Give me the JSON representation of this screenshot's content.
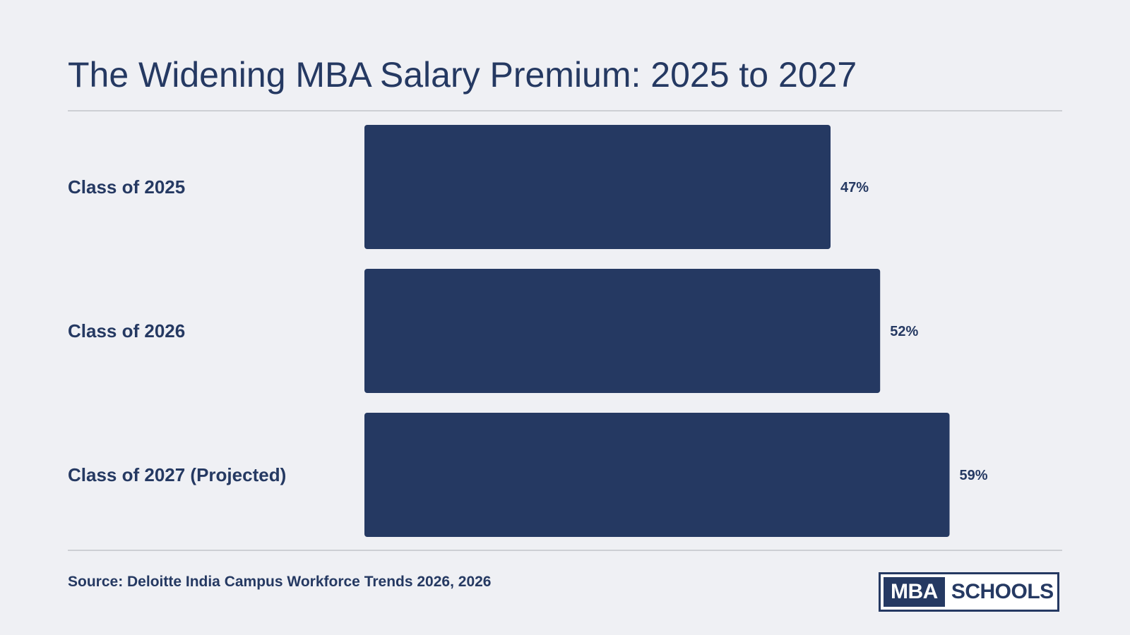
{
  "title": "The Widening MBA Salary Premium: 2025 to 2027",
  "source": "Source: Deloitte India Campus Workforce Trends 2026, 2026",
  "logo": {
    "part1": "MBA",
    "part2": "SCHOOLS"
  },
  "colors": {
    "bar": "#253962",
    "background": "#eff0f4",
    "text": "#253962"
  },
  "chart_data": {
    "type": "bar",
    "orientation": "horizontal",
    "categories": [
      "Class of 2025",
      "Class of 2026",
      "Class of 2027 (Projected)"
    ],
    "values": [
      47,
      52,
      59
    ],
    "value_labels": [
      "47%",
      "52%",
      "59%"
    ],
    "unit": "%",
    "xlim": [
      0,
      100
    ],
    "grid": false,
    "legend": "none"
  }
}
